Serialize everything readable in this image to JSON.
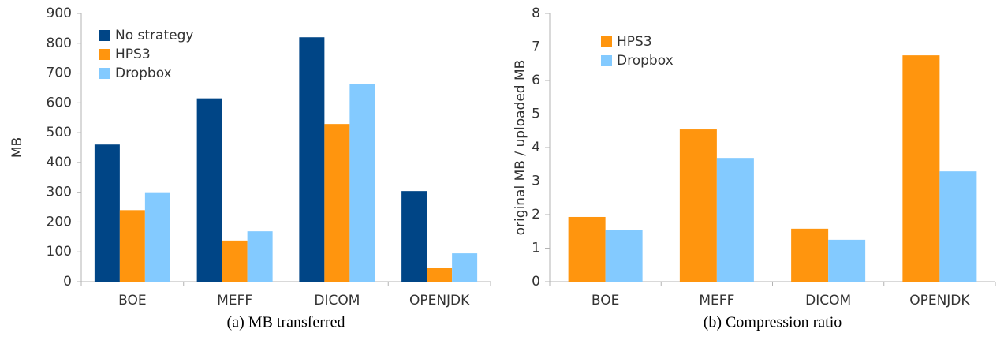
{
  "chart_data": [
    {
      "type": "bar",
      "caption": "(a) MB transferred",
      "ylabel": "MB",
      "categories": [
        "BOE",
        "MEFF",
        "DICOM",
        "OPENJDK"
      ],
      "series": [
        {
          "name": "No strategy",
          "color": "#004586",
          "values": [
            460,
            615,
            820,
            304
          ]
        },
        {
          "name": "HPS3",
          "color": "#ff950e",
          "values": [
            240,
            138,
            529,
            45
          ]
        },
        {
          "name": "Dropbox",
          "color": "#83caff",
          "values": [
            300,
            169,
            662,
            95
          ]
        }
      ],
      "ylim": [
        0,
        900
      ],
      "yticks": [
        0,
        100,
        200,
        300,
        400,
        500,
        600,
        700,
        800,
        900
      ],
      "legend": "upper left",
      "grid": false
    },
    {
      "type": "bar",
      "caption": "(b) Compression ratio",
      "ylabel": "original MB / uploaded MB",
      "categories": [
        "BOE",
        "MEFF",
        "DICOM",
        "OPENJDK"
      ],
      "series": [
        {
          "name": "HPS3",
          "color": "#ff950e",
          "values": [
            1.93,
            4.54,
            1.58,
            6.75
          ]
        },
        {
          "name": "Dropbox",
          "color": "#83caff",
          "values": [
            1.55,
            3.69,
            1.25,
            3.29
          ]
        }
      ],
      "ylim": [
        0,
        8
      ],
      "yticks": [
        0,
        1,
        2,
        3,
        4,
        5,
        6,
        7,
        8
      ],
      "legend": "upper left",
      "grid": false
    }
  ]
}
